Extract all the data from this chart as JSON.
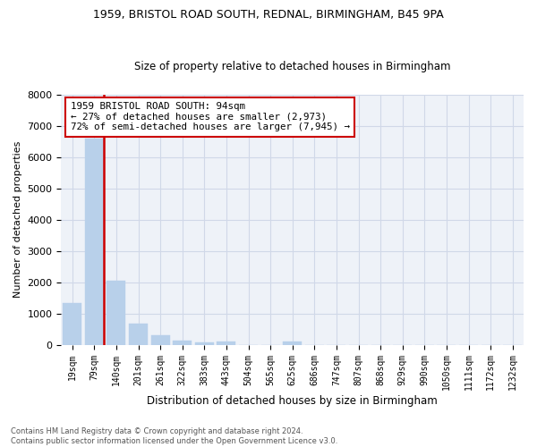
{
  "title1": "1959, BRISTOL ROAD SOUTH, REDNAL, BIRMINGHAM, B45 9PA",
  "title2": "Size of property relative to detached houses in Birmingham",
  "xlabel": "Distribution of detached houses by size in Birmingham",
  "ylabel": "Number of detached properties",
  "categories": [
    "19sqm",
    "79sqm",
    "140sqm",
    "201sqm",
    "261sqm",
    "322sqm",
    "383sqm",
    "443sqm",
    "504sqm",
    "565sqm",
    "625sqm",
    "686sqm",
    "747sqm",
    "807sqm",
    "868sqm",
    "929sqm",
    "990sqm",
    "1050sqm",
    "1111sqm",
    "1172sqm",
    "1232sqm"
  ],
  "values": [
    1320,
    6600,
    2060,
    680,
    290,
    130,
    75,
    95,
    0,
    0,
    95,
    0,
    0,
    0,
    0,
    0,
    0,
    0,
    0,
    0,
    0
  ],
  "bar_color": "#b8d0ea",
  "vline_color": "#cc0000",
  "vline_x_index": 1,
  "annotation_text": "1959 BRISTOL ROAD SOUTH: 94sqm\n← 27% of detached houses are smaller (2,973)\n72% of semi-detached houses are larger (7,945) →",
  "annotation_box_color": "white",
  "annotation_box_edge_color": "#cc0000",
  "ylim": [
    0,
    8000
  ],
  "yticks": [
    0,
    1000,
    2000,
    3000,
    4000,
    5000,
    6000,
    7000,
    8000
  ],
  "grid_color": "#d0d8e8",
  "background_color": "#eef2f8",
  "footnote": "Contains HM Land Registry data © Crown copyright and database right 2024.\nContains public sector information licensed under the Open Government Licence v3.0."
}
